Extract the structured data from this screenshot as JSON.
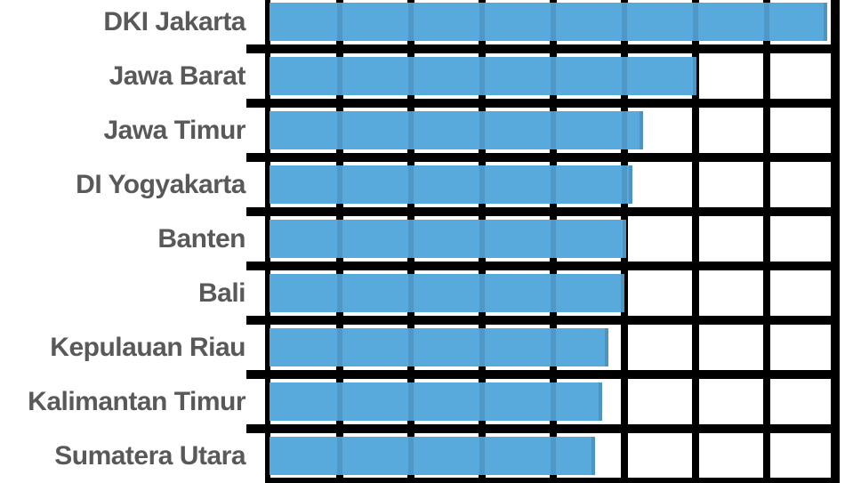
{
  "chart_data": {
    "type": "bar",
    "orientation": "horizontal",
    "title": "",
    "xlabel": "",
    "ylabel": "",
    "categories": [
      "DKI Jakarta",
      "Jawa Barat",
      "Jawa Timur",
      "DI Yogyakarta",
      "Banten",
      "Bali",
      "Kepulauan Riau",
      "Kalimantan Timur",
      "Sumatera Utara"
    ],
    "values": [
      7.84,
      6.0,
      5.25,
      5.1,
      5.01,
      4.99,
      4.76,
      4.68,
      4.58
    ],
    "value_note": "axis tick labels not visible in screenshot; values measured in vertical-gridline intervals from the y-axis",
    "xlim": [
      0,
      8
    ],
    "grid": true,
    "legend": false,
    "colors": {
      "bar": "#58aadc",
      "grid": "#000000",
      "label": "#595959",
      "background": "#ffffff"
    }
  }
}
